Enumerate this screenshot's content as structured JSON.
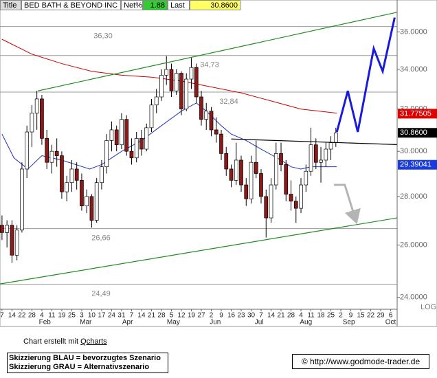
{
  "header": {
    "title_label": "Title",
    "name": "BED BATH & BEYOND INC",
    "net_label": "Net%",
    "net": "1.88",
    "last_label": "Last",
    "last": "30.8600"
  },
  "chart_data": {
    "type": "candlestick",
    "log": true,
    "grid": false,
    "up_color": "#ffffff",
    "down_color": "#8b1a1a",
    "xlim": [
      -0.2,
      39.65
    ],
    "ylim": [
      23.57,
      37.8
    ],
    "yticks": [
      {
        "value": 24,
        "label": "24.0000"
      },
      {
        "value": 26,
        "label": "26.0000"
      },
      {
        "value": 28,
        "label": "28.0000"
      },
      {
        "value": 30,
        "label": "30.0000"
      },
      {
        "value": 32,
        "label": "32.0000"
      },
      {
        "value": 34,
        "label": "34.0000"
      },
      {
        "value": 36,
        "label": "36.0000"
      }
    ],
    "scale_label": "LOG",
    "xticks": [
      {
        "value": 0,
        "label": "7"
      },
      {
        "value": 1,
        "label": "14"
      },
      {
        "value": 2,
        "label": "22"
      },
      {
        "value": 3,
        "label": "28"
      },
      {
        "value": 4,
        "label": "4"
      },
      {
        "value": 5,
        "label": "11"
      },
      {
        "value": 6,
        "label": "19"
      },
      {
        "value": 7,
        "label": "25"
      },
      {
        "value": 8,
        "label": "3"
      },
      {
        "value": 9,
        "label": "10"
      },
      {
        "value": 10,
        "label": "17"
      },
      {
        "value": 11,
        "label": "24"
      },
      {
        "value": 12,
        "label": "31"
      },
      {
        "value": 13,
        "label": "7"
      },
      {
        "value": 14,
        "label": "14"
      },
      {
        "value": 15,
        "label": "21"
      },
      {
        "value": 16,
        "label": "28"
      },
      {
        "value": 17,
        "label": "5"
      },
      {
        "value": 18,
        "label": "12"
      },
      {
        "value": 19,
        "label": "19"
      },
      {
        "value": 20,
        "label": "27"
      },
      {
        "value": 21,
        "label": "2"
      },
      {
        "value": 22,
        "label": "9"
      },
      {
        "value": 23,
        "label": "16"
      },
      {
        "value": 24,
        "label": "23"
      },
      {
        "value": 25,
        "label": "30"
      },
      {
        "value": 26,
        "label": "7"
      },
      {
        "value": 27,
        "label": "14"
      },
      {
        "value": 28,
        "label": "21"
      },
      {
        "value": 29,
        "label": "28"
      },
      {
        "value": 30,
        "label": "4"
      },
      {
        "value": 31,
        "label": "11"
      },
      {
        "value": 32,
        "label": "18"
      },
      {
        "value": 33,
        "label": "25"
      },
      {
        "value": 34,
        "label": "2"
      },
      {
        "value": 35,
        "label": "9"
      },
      {
        "value": 36,
        "label": "15"
      },
      {
        "value": 37,
        "label": "22"
      },
      {
        "value": 38,
        "label": "29"
      },
      {
        "value": 39,
        "label": "6"
      }
    ],
    "months": [
      {
        "value": 4.3,
        "label": "Feb"
      },
      {
        "value": 8.4,
        "label": "Mar"
      },
      {
        "value": 12.6,
        "label": "Apr"
      },
      {
        "value": 17.2,
        "label": "May"
      },
      {
        "value": 21.4,
        "label": "Jun"
      },
      {
        "value": 25.8,
        "label": "Jul"
      },
      {
        "value": 30.5,
        "label": "Aug"
      },
      {
        "value": 34.8,
        "label": "Sep"
      },
      {
        "value": 39,
        "label": "Oct"
      }
    ],
    "x": [
      0,
      0.5,
      1,
      1.5,
      2,
      2.5,
      3,
      3.5,
      4,
      4.5,
      5,
      5.5,
      6,
      6.5,
      7,
      7.5,
      8,
      8.5,
      9,
      9.5,
      10,
      10.5,
      11,
      11.5,
      12,
      12.5,
      13,
      13.5,
      14,
      14.5,
      15,
      15.5,
      16,
      16.5,
      17,
      17.5,
      18,
      18.5,
      19,
      19.5,
      20,
      20.5,
      21,
      21.5,
      22,
      22.5,
      23,
      23.5,
      24,
      24.5,
      25,
      25.5,
      26,
      26.5,
      27,
      27.5,
      28,
      28.5,
      29,
      29.5,
      30,
      30.5,
      31,
      31.5,
      32,
      32.5,
      33,
      33.5
    ],
    "open": [
      26.8,
      26.5,
      26.8,
      25.6,
      26.6,
      29.2,
      30.9,
      31.8,
      32.5,
      30.6,
      29.5,
      30.0,
      29.8,
      28.2,
      28.6,
      29.2,
      28.7,
      27.6,
      28.0,
      27.0,
      28.6,
      29.3,
      30.5,
      31.0,
      30.3,
      31.5,
      30.0,
      29.7,
      30.6,
      30.1,
      31.1,
      32.2,
      32.6,
      33.7,
      34.0,
      32.9,
      33.8,
      32.0,
      33.5,
      34.1,
      32.6,
      31.5,
      31.9,
      31.0,
      30.8,
      29.9,
      29.2,
      28.7,
      29.6,
      28.5,
      27.9,
      29.5,
      29.0,
      28.0,
      27.1,
      28.5,
      29.9,
      29.4,
      28.1,
      27.8,
      27.5,
      28.5,
      29.1,
      30.3,
      29.5,
      29.6,
      30.1,
      30.4
    ],
    "high": [
      27.2,
      27.0,
      27.0,
      26.8,
      29.5,
      31.2,
      32.2,
      32.9,
      32.7,
      31.0,
      30.3,
      30.6,
      30.0,
      28.9,
      29.6,
      29.5,
      29.0,
      28.3,
      28.1,
      28.8,
      29.6,
      30.8,
      31.4,
      31.2,
      31.8,
      31.7,
      30.6,
      30.9,
      31.0,
      31.3,
      32.5,
      33.0,
      34.0,
      34.7,
      34.3,
      34.0,
      33.9,
      33.8,
      34.6,
      34.3,
      32.9,
      32.3,
      32.1,
      31.6,
      31.0,
      30.2,
      29.4,
      30.4,
      29.8,
      28.8,
      29.8,
      30.5,
      29.2,
      28.3,
      28.8,
      30.4,
      30.4,
      29.6,
      28.7,
      28.0,
      28.8,
      29.4,
      31.1,
      30.6,
      30.2,
      30.4,
      30.7,
      31.1
    ],
    "low": [
      26.2,
      25.9,
      25.3,
      25.4,
      26.5,
      28.8,
      30.2,
      31.0,
      30.3,
      29.2,
      29.0,
      29.3,
      27.9,
      27.8,
      28.2,
      28.3,
      27.4,
      27.3,
      26.7,
      26.9,
      28.3,
      29.0,
      30.0,
      30.0,
      30.1,
      29.8,
      29.4,
      29.5,
      29.8,
      30.0,
      30.9,
      31.8,
      32.4,
      33.2,
      32.6,
      32.7,
      31.7,
      31.9,
      33.0,
      32.3,
      31.2,
      31.0,
      30.7,
      30.4,
      29.6,
      28.9,
      28.4,
      28.5,
      28.2,
      27.6,
      27.7,
      28.8,
      27.7,
      26.3,
      26.9,
      28.3,
      29.1,
      27.8,
      27.4,
      26.9,
      27.3,
      28.2,
      28.9,
      29.2,
      28.6,
      29.3,
      29.6,
      30.2
    ],
    "close": [
      26.5,
      26.8,
      25.6,
      26.6,
      29.2,
      30.9,
      31.8,
      32.5,
      30.6,
      29.5,
      30.0,
      29.8,
      28.2,
      28.6,
      29.2,
      28.7,
      27.6,
      28.0,
      27.0,
      28.6,
      29.3,
      30.5,
      31.0,
      30.3,
      31.5,
      30.0,
      29.7,
      30.6,
      30.1,
      31.1,
      32.2,
      32.6,
      33.7,
      34.0,
      32.9,
      33.8,
      32.0,
      33.5,
      34.1,
      32.6,
      31.5,
      31.9,
      31.0,
      30.8,
      29.9,
      29.2,
      28.7,
      29.6,
      28.5,
      27.9,
      29.5,
      29.0,
      28.0,
      27.1,
      28.5,
      29.9,
      29.4,
      28.1,
      27.8,
      27.5,
      28.5,
      29.1,
      30.3,
      29.5,
      29.6,
      30.1,
      30.4,
      30.86
    ],
    "lines": [
      {
        "color": "#cc0000",
        "x": [
          0,
          3,
          6,
          9,
          12,
          15,
          18,
          21,
          24,
          27,
          30,
          33.6
        ],
        "values": [
          35.6,
          34.8,
          34.3,
          33.9,
          33.7,
          33.6,
          33.4,
          33.1,
          32.8,
          32.4,
          32.0,
          31.8
        ]
      },
      {
        "color": "#2233bb",
        "x": [
          0,
          1.2,
          2.6,
          4,
          6,
          8.8,
          10,
          12,
          14,
          16,
          18,
          19.5,
          20.5,
          22,
          23,
          24.5,
          26,
          28,
          29,
          30,
          31,
          32,
          33.6
        ],
        "values": [
          30.8,
          29.7,
          29.2,
          29.8,
          29.6,
          29.2,
          29.4,
          30.0,
          30.5,
          31.2,
          31.9,
          32.3,
          31.9,
          31.2,
          30.8,
          30.5,
          30.1,
          29.6,
          29.3,
          29.2,
          29.3,
          29.3,
          29.3
        ]
      }
    ],
    "price_tags": [
      {
        "value": 31.77505,
        "color": "#e00000"
      },
      {
        "value": 30.86,
        "label": "30.8600",
        "color": "#000000"
      },
      {
        "value": 29.39041,
        "color": "#1a3cdc"
      }
    ],
    "levels": [
      {
        "value": 36.3,
        "label": "36,30"
      },
      {
        "value": 34.73,
        "label": "34,73"
      },
      {
        "value": 32.84,
        "label": "32,84"
      },
      {
        "value": 26.66,
        "label": "26,66"
      },
      {
        "value": 24.49,
        "label": "24,49"
      }
    ],
    "trendlines": [
      {
        "color": "#1e8c1e",
        "x": [
          3.6,
          39.65
        ],
        "values": [
          32.9,
          37.1
        ]
      },
      {
        "color": "#1e8c1e",
        "x": [
          -0.2,
          39.65
        ],
        "values": [
          24.5,
          27.1
        ]
      },
      {
        "color": "#000000",
        "x": [
          23,
          39.65
        ],
        "values": [
          30.57,
          30.31
        ]
      },
      {
        "color": "#1a1adc",
        "x": [
          33.6,
          34.7,
          35.7,
          37.3,
          38.2,
          39.4
        ],
        "values": [
          30.9,
          32.9,
          30.9,
          35.1,
          33.9,
          36.8
        ]
      },
      {
        "color": "#b4b4b4",
        "x": [
          33.3,
          34.4,
          35.5
        ],
        "values": [
          28.5,
          28.5,
          27.0
        ],
        "arrow": true
      }
    ]
  },
  "footer": {
    "credit": "Chart erstellt mit",
    "credit_link": "Qcharts",
    "scenario_blue": "Skizzierung BLAU = bevorzugtes Szenario",
    "scenario_gray": "Skizzierung GRAU = Alternativszenario",
    "copyright": "© http://www.godmode-trader.de"
  }
}
